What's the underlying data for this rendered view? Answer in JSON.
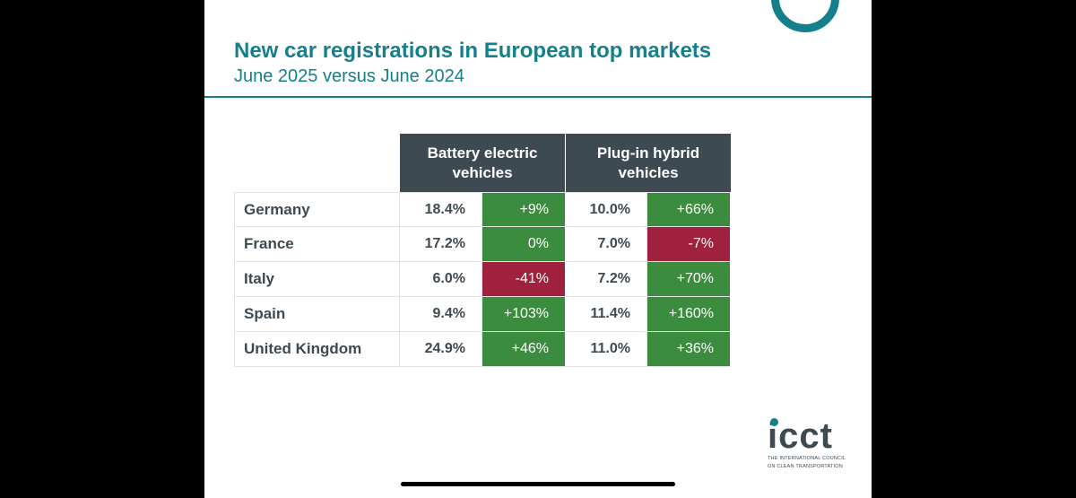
{
  "header": {
    "title": "New car registrations in European top markets",
    "subtitle": "June 2025 versus June 2024"
  },
  "chart_data": {
    "type": "table",
    "column_groups": [
      "Battery electric vehicles",
      "Plug-in hybrid vehicles"
    ],
    "rows": [
      {
        "country": "Germany",
        "bev_share": "18.4%",
        "bev_change": "+9%",
        "phev_share": "10.0%",
        "phev_change": "+66%"
      },
      {
        "country": "France",
        "bev_share": "17.2%",
        "bev_change": "0%",
        "phev_share": "7.0%",
        "phev_change": "-7%"
      },
      {
        "country": "Italy",
        "bev_share": "6.0%",
        "bev_change": "-41%",
        "phev_share": "7.2%",
        "phev_change": "+70%"
      },
      {
        "country": "Spain",
        "bev_share": "9.4%",
        "bev_change": "+103%",
        "phev_share": "11.4%",
        "phev_change": "+160%"
      },
      {
        "country": "United Kingdom",
        "bev_share": "24.9%",
        "bev_change": "+46%",
        "phev_share": "11.0%",
        "phev_change": "+36%"
      }
    ],
    "colors": {
      "positive": "#3c8c3f",
      "negative": "#a0213e",
      "header": "#3e4a52",
      "accent": "#157f8c"
    }
  },
  "logo": {
    "word": "icct",
    "line1": "THE INTERNATIONAL COUNCIL",
    "line2": "ON CLEAN TRANSPORTATION"
  }
}
